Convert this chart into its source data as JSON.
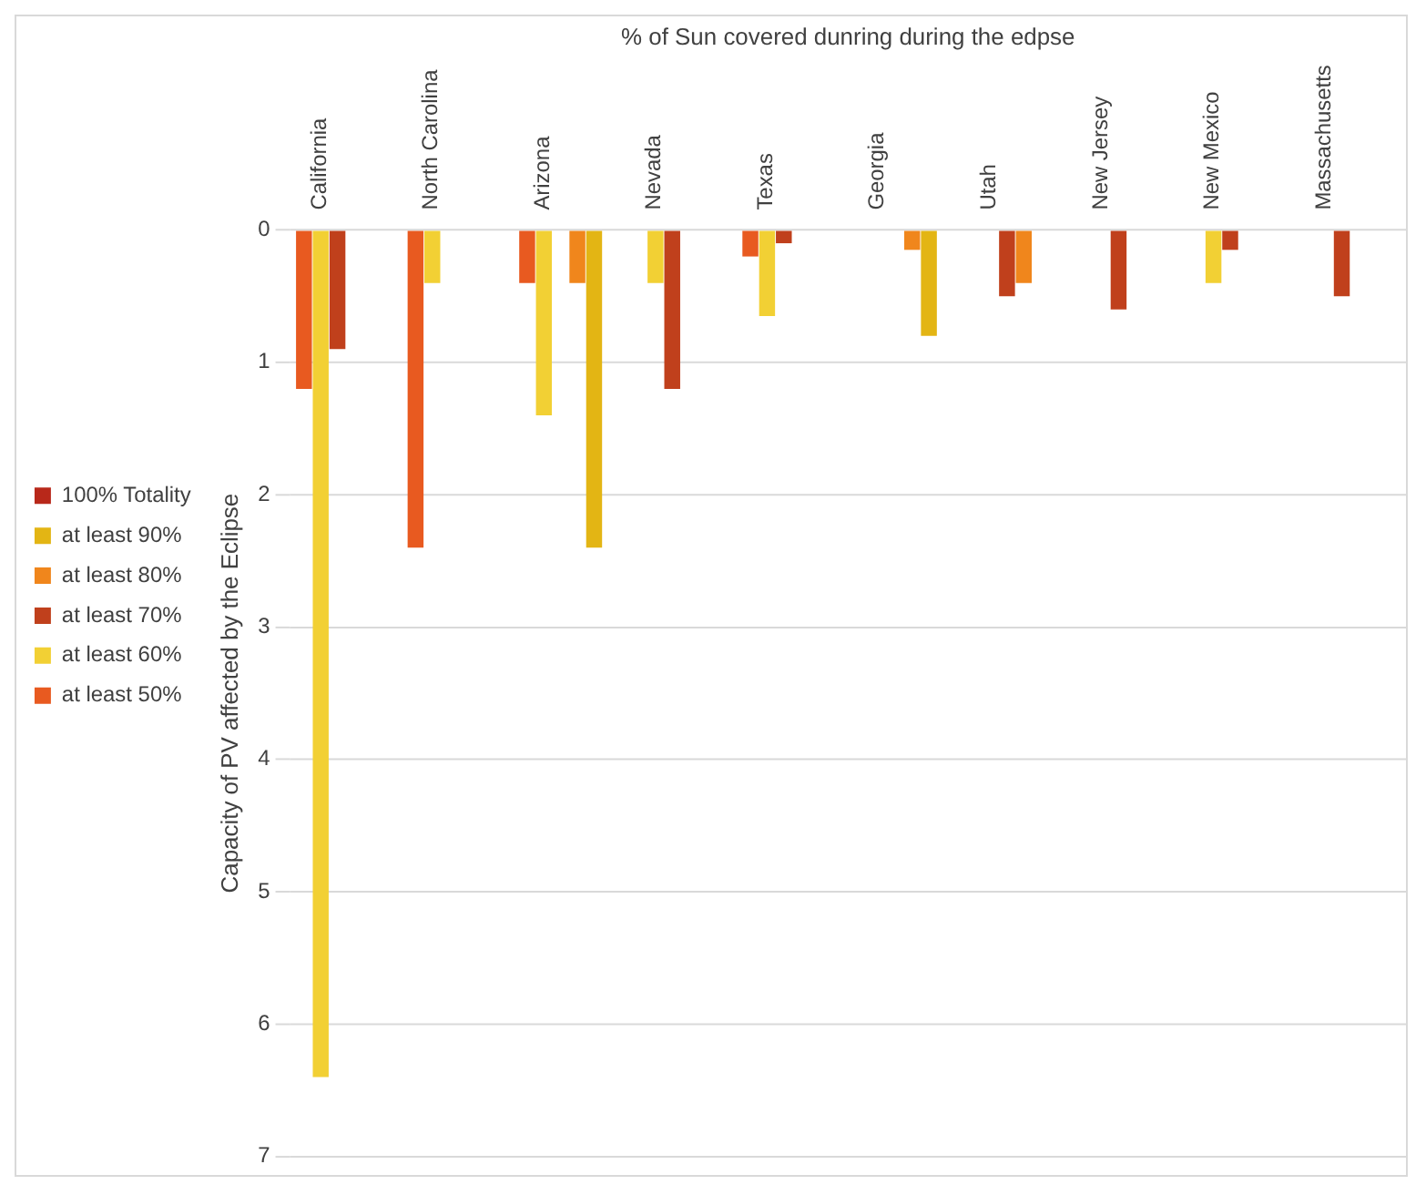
{
  "chart_data": {
    "type": "bar",
    "xlabel": "% of Sun covered dunring during the edpse",
    "ylabel": "Capacity of PV affected by the Eclipse",
    "categories": [
      "California",
      "North Carolina",
      "Arizona",
      "Nevada",
      "Texas",
      "Georgia",
      "Utah",
      "New Jersey",
      "New Mexico",
      "Massachusetts"
    ],
    "series": [
      {
        "name": "100% Totality",
        "color": "#b8281a",
        "values": [
          null,
          null,
          null,
          null,
          null,
          null,
          null,
          null,
          null,
          null
        ]
      },
      {
        "name": "at least 90%",
        "color": "#e3b514",
        "values": [
          null,
          null,
          2.4,
          null,
          null,
          0.8,
          null,
          null,
          null,
          null
        ]
      },
      {
        "name": "at least 80%",
        "color": "#f0861c",
        "values": [
          null,
          null,
          0.4,
          null,
          null,
          0.15,
          0.4,
          null,
          null,
          null
        ]
      },
      {
        "name": "at least 70%",
        "color": "#c0401c",
        "values": [
          0.9,
          null,
          null,
          1.2,
          0.1,
          null,
          0.5,
          0.6,
          0.15,
          0.5
        ]
      },
      {
        "name": "at least 60%",
        "color": "#f2d034",
        "values": [
          6.4,
          0.4,
          1.4,
          0.4,
          0.65,
          null,
          null,
          null,
          0.4,
          null
        ]
      },
      {
        "name": "at least 50%",
        "color": "#e85a20",
        "values": [
          1.2,
          2.4,
          0.4,
          null,
          0.2,
          null,
          null,
          null,
          null,
          null
        ]
      }
    ],
    "ylim": [
      7,
      0
    ],
    "yticks": [
      0,
      1,
      2,
      3,
      4,
      5,
      6,
      7
    ],
    "grid": "y",
    "legend": "left"
  }
}
